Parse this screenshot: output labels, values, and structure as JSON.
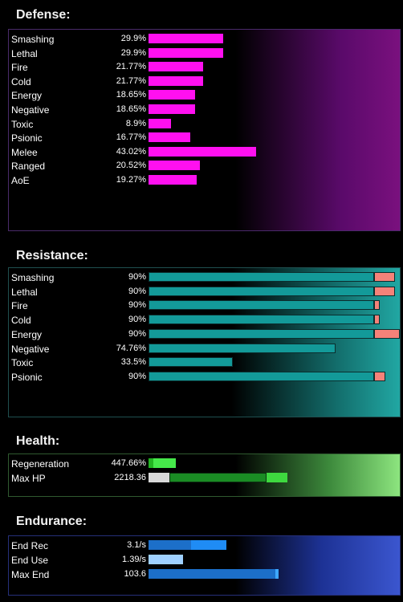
{
  "sections": {
    "defense": "Defense:",
    "resistance": "Resistance:",
    "health": "Health:",
    "endurance": "Endurance:"
  },
  "defense": [
    {
      "label": "Smashing",
      "value": "29.9%",
      "pct": 29.9
    },
    {
      "label": "Lethal",
      "value": "29.9%",
      "pct": 29.9
    },
    {
      "label": "Fire",
      "value": "21.77%",
      "pct": 21.77
    },
    {
      "label": "Cold",
      "value": "21.77%",
      "pct": 21.77
    },
    {
      "label": "Energy",
      "value": "18.65%",
      "pct": 18.65
    },
    {
      "label": "Negative",
      "value": "18.65%",
      "pct": 18.65
    },
    {
      "label": "Toxic",
      "value": "8.9%",
      "pct": 8.9
    },
    {
      "label": "Psionic",
      "value": "16.77%",
      "pct": 16.77
    },
    {
      "label": "Melee",
      "value": "43.02%",
      "pct": 43.02
    },
    {
      "label": "Ranged",
      "value": "20.52%",
      "pct": 20.52
    },
    {
      "label": "AoE",
      "value": "19.27%",
      "pct": 19.27
    }
  ],
  "resistance": [
    {
      "label": "Smashing",
      "value": "90%",
      "pct": 90,
      "over": "large"
    },
    {
      "label": "Lethal",
      "value": "90%",
      "pct": 90,
      "over": "large"
    },
    {
      "label": "Fire",
      "value": "90%",
      "pct": 90,
      "over": "small"
    },
    {
      "label": "Cold",
      "value": "90%",
      "pct": 90,
      "over": "small"
    },
    {
      "label": "Energy",
      "value": "90%",
      "pct": 90,
      "over": "xlarge"
    },
    {
      "label": "Negative",
      "value": "74.76%",
      "pct": 74.76,
      "over": "none"
    },
    {
      "label": "Toxic",
      "value": "33.5%",
      "pct": 33.5,
      "over": "none"
    },
    {
      "label": "Psionic",
      "value": "90%",
      "pct": 90,
      "over": "medium"
    }
  ],
  "health": [
    {
      "label": "Regeneration",
      "value": "447.66%"
    },
    {
      "label": "Max HP",
      "value": "2218.36"
    }
  ],
  "endurance": [
    {
      "label": "End Rec",
      "value": "3.1/s"
    },
    {
      "label": "End Use",
      "value": "1.39/s"
    },
    {
      "label": "Max End",
      "value": "103.6"
    }
  ],
  "colors": {
    "defense_bar": "#ff10f0",
    "resistance_bar": "#139a99",
    "resistance_over": "#f58279",
    "health_bar": "#45e84a",
    "endurance_bar": "#1f8cf5"
  }
}
